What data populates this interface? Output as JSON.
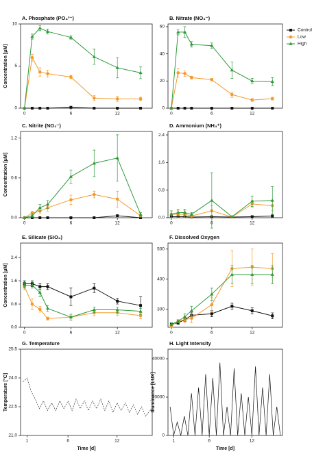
{
  "chart_data": [
    {
      "type": "line",
      "title": "A. Phosphate (PO₄³⁻)",
      "ylabel": "Concentration [μM]",
      "x": [
        0,
        1,
        2,
        3,
        6,
        9,
        12,
        15
      ],
      "xlim": [
        -0.5,
        16.5
      ],
      "xticks": [
        0,
        6,
        12
      ],
      "ylim": [
        0,
        10
      ],
      "yticks": [
        0,
        5,
        10
      ],
      "legend": "right-outside",
      "series": [
        {
          "name": "Control",
          "color": "#111111",
          "marker": "square",
          "values": [
            0,
            0,
            0,
            0,
            0.1,
            0,
            0,
            0
          ]
        },
        {
          "name": "Low",
          "color": "#f39a2b",
          "marker": "circle",
          "values": [
            0,
            6.0,
            4.3,
            4.1,
            3.7,
            1.2,
            1.1,
            1.1
          ],
          "errors": [
            0,
            0.4,
            0.5,
            0.4,
            0.2,
            0.3,
            0.3,
            0.2
          ]
        },
        {
          "name": "High",
          "color": "#2e9a3a",
          "marker": "triangle",
          "values": [
            0,
            8.5,
            9.5,
            9.1,
            8.4,
            6.1,
            4.8,
            4.2
          ],
          "errors": [
            0,
            0.3,
            0.3,
            0.3,
            0.2,
            0.9,
            1.2,
            0.7
          ]
        }
      ]
    },
    {
      "type": "line",
      "title": "B. Nitrate (NO₃⁻)",
      "x": [
        0,
        1,
        2,
        3,
        6,
        9,
        12,
        15
      ],
      "xlim": [
        -0.5,
        16.5
      ],
      "xticks": [
        0,
        6,
        12
      ],
      "ylim": [
        0,
        62
      ],
      "yticks": [
        0,
        20,
        40,
        60
      ],
      "series": [
        {
          "color": "#111111",
          "marker": "square",
          "values": [
            0,
            0,
            0,
            0,
            0,
            0,
            0,
            0
          ]
        },
        {
          "color": "#f39a2b",
          "marker": "circle",
          "values": [
            0,
            26,
            25.5,
            22.5,
            21,
            10,
            6,
            7
          ],
          "errors": [
            0,
            3,
            2,
            1,
            1,
            2,
            1,
            1
          ]
        },
        {
          "color": "#2e9a3a",
          "marker": "triangle",
          "values": [
            0,
            56,
            56,
            47,
            46,
            28,
            20,
            19.5
          ],
          "errors": [
            0,
            2,
            4,
            2,
            2,
            6,
            2,
            3
          ]
        }
      ]
    },
    {
      "type": "line",
      "title": "C. Nitrite (NO₂⁻)",
      "ylabel": "Concentration [μM]",
      "x": [
        0,
        1,
        2,
        3,
        6,
        9,
        12,
        15
      ],
      "xlim": [
        -0.5,
        16.5
      ],
      "xticks": [
        0,
        6,
        12
      ],
      "ylim": [
        0,
        1.3
      ],
      "yticks": [
        {
          "value": 0,
          "label": "0.0"
        },
        0.6,
        1.2
      ],
      "series": [
        {
          "color": "#111111",
          "marker": "square",
          "values": [
            0,
            0,
            0,
            0,
            0,
            0,
            0.03,
            0
          ]
        },
        {
          "color": "#f39a2b",
          "marker": "circle",
          "values": [
            0,
            0.07,
            0.1,
            0.15,
            0.27,
            0.35,
            0.28,
            0.03
          ],
          "errors": [
            0,
            0.03,
            0.04,
            0.05,
            0.07,
            0.05,
            0.12,
            0.02
          ]
        },
        {
          "color": "#2e9a3a",
          "marker": "triangle",
          "values": [
            0,
            0.03,
            0.15,
            0.2,
            0.62,
            0.82,
            0.9,
            0.05
          ],
          "errors": [
            0,
            0.03,
            0.05,
            0.06,
            0.1,
            0.2,
            0.35,
            0.03
          ]
        }
      ]
    },
    {
      "type": "line",
      "title": "D. Ammonium (NH₄⁺)",
      "x": [
        0,
        1,
        2,
        3,
        6,
        9,
        12,
        15
      ],
      "xlim": [
        -0.5,
        16.5
      ],
      "xticks": [
        0,
        6,
        12
      ],
      "ylim": [
        0,
        2.5
      ],
      "yticks": [
        {
          "value": 0,
          "label": "0.0"
        },
        0.8,
        1.6,
        2.4
      ],
      "series": [
        {
          "color": "#111111",
          "marker": "square",
          "values": [
            0.03,
            0.03,
            0.03,
            0.02,
            0.03,
            0.02,
            0.03,
            0.05
          ]
        },
        {
          "color": "#f39a2b",
          "marker": "circle",
          "values": [
            0.1,
            0.1,
            0.1,
            0.05,
            0.2,
            0.02,
            0.4,
            0.35
          ],
          "errors": [
            0.1,
            0.1,
            0.1,
            0.05,
            0.15,
            0.02,
            0.1,
            0.15
          ]
        },
        {
          "color": "#2e9a3a",
          "marker": "triangle",
          "values": [
            0.1,
            0.15,
            0.15,
            0.1,
            0.5,
            0.03,
            0.48,
            0.5
          ],
          "errors": [
            0.1,
            0.1,
            0.1,
            0.05,
            0.8,
            0.02,
            0.15,
            0.4
          ]
        }
      ]
    },
    {
      "type": "line",
      "title": "E. Silicate (SiO₄)",
      "ylabel": "Concentration [μM]",
      "x": [
        0,
        1,
        2,
        3,
        6,
        9,
        12,
        15
      ],
      "xlim": [
        -0.5,
        16.5
      ],
      "xticks": [
        0,
        6,
        12
      ],
      "ylim": [
        0,
        2.9
      ],
      "yticks": [
        {
          "value": 0,
          "label": "0.0"
        },
        0.8,
        1.6,
        2.4
      ],
      "series": [
        {
          "color": "#111111",
          "marker": "square",
          "values": [
            1.5,
            1.5,
            1.4,
            1.4,
            1.05,
            1.35,
            0.9,
            0.75
          ],
          "errors": [
            0.1,
            0.1,
            0.1,
            0.1,
            0.3,
            0.15,
            0.1,
            0.3
          ]
        },
        {
          "color": "#f39a2b",
          "marker": "circle",
          "values": [
            1.4,
            0.8,
            0.62,
            0.3,
            0.35,
            0.5,
            0.5,
            0.4
          ],
          "errors": [
            0.1,
            0.2,
            0.1,
            0.05,
            0.1,
            0.1,
            0.1,
            0.1
          ]
        },
        {
          "color": "#2e9a3a",
          "marker": "triangle",
          "values": [
            1.45,
            1.45,
            1.2,
            0.65,
            0.35,
            0.6,
            0.6,
            0.55
          ],
          "errors": [
            0.1,
            0.1,
            0.15,
            0.1,
            0.1,
            0.1,
            0.1,
            0.1
          ]
        }
      ]
    },
    {
      "type": "line",
      "title": "F. Dissolved Oxygen",
      "x": [
        0,
        1,
        2,
        3,
        6,
        9,
        12,
        15
      ],
      "xlim": [
        -0.5,
        16.5
      ],
      "xticks": [
        0,
        6,
        12
      ],
      "ylim": [
        240,
        520
      ],
      "yticks": [
        300,
        400,
        500
      ],
      "series": [
        {
          "color": "#111111",
          "marker": "square",
          "values": [
            250,
            255,
            265,
            280,
            285,
            310,
            295,
            278
          ],
          "errors": [
            5,
            5,
            5,
            10,
            10,
            10,
            10,
            10
          ]
        },
        {
          "color": "#f39a2b",
          "marker": "circle",
          "values": [
            245,
            260,
            265,
            270,
            315,
            435,
            440,
            435
          ],
          "errors": [
            5,
            5,
            10,
            15,
            25,
            60,
            60,
            50
          ]
        },
        {
          "color": "#2e9a3a",
          "marker": "triangle",
          "values": [
            250,
            260,
            275,
            295,
            350,
            415,
            415,
            415
          ],
          "errors": [
            5,
            5,
            10,
            15,
            20,
            30,
            30,
            30
          ]
        }
      ]
    },
    {
      "type": "line",
      "title": "G. Temperature",
      "ylabel": "Temperature [°C]",
      "xlabel": "Time [d]",
      "line_style": "dashed",
      "x": [
        0.5,
        1,
        1.5,
        2,
        2.5,
        3,
        3.5,
        4,
        4.5,
        5,
        5.5,
        6,
        6.5,
        7,
        7.5,
        8,
        8.5,
        9,
        9.5,
        10,
        10.5,
        11,
        11.5,
        12,
        12.5,
        13,
        13.5,
        14,
        14.5,
        15,
        15.5,
        16
      ],
      "xlim": [
        0.2,
        16.3
      ],
      "xticks": [
        1,
        6,
        12
      ],
      "ylim": [
        21.0,
        25.5
      ],
      "yticks": [
        {
          "value": 21,
          "label": "21.0"
        },
        22.5,
        {
          "value": 24,
          "label": "24.0"
        },
        25.5
      ],
      "series": [
        {
          "color": "#333333",
          "values": [
            23.8,
            24.0,
            23.3,
            22.9,
            22.4,
            22.8,
            22.3,
            22.7,
            22.3,
            22.8,
            22.4,
            22.8,
            22.3,
            22.9,
            22.4,
            22.8,
            22.3,
            22.8,
            22.4,
            22.9,
            22.3,
            22.8,
            22.2,
            22.7,
            22.3,
            22.7,
            22.2,
            22.6,
            22.1,
            22.5,
            22.0,
            22.3
          ]
        }
      ]
    },
    {
      "type": "line",
      "title": "H. Light Intensity",
      "ylabel": "Illuminance [LUX]",
      "xlabel": "Time [d]",
      "x": [
        0.5,
        1,
        1.5,
        2,
        2.5,
        3,
        3.5,
        4,
        4.5,
        5,
        5.5,
        6,
        6.5,
        7,
        7.5,
        8,
        8.5,
        9,
        9.5,
        10,
        10.5,
        11,
        11.5,
        12,
        12.5,
        13,
        13.5,
        14,
        14.5,
        15,
        15.5,
        16
      ],
      "xlim": [
        0.2,
        16.3
      ],
      "xticks": [
        1,
        6,
        12
      ],
      "ylim": [
        0,
        45000
      ],
      "yticks": [
        0,
        20000,
        40000
      ],
      "series": [
        {
          "color": "#111111",
          "values": [
            15000,
            0,
            7000,
            0,
            10000,
            0,
            22000,
            0,
            25000,
            0,
            32000,
            0,
            30000,
            0,
            38000,
            0,
            15000,
            0,
            35000,
            0,
            22000,
            0,
            20000,
            0,
            36000,
            0,
            25000,
            0,
            32000,
            0,
            15000,
            0
          ]
        }
      ]
    }
  ]
}
